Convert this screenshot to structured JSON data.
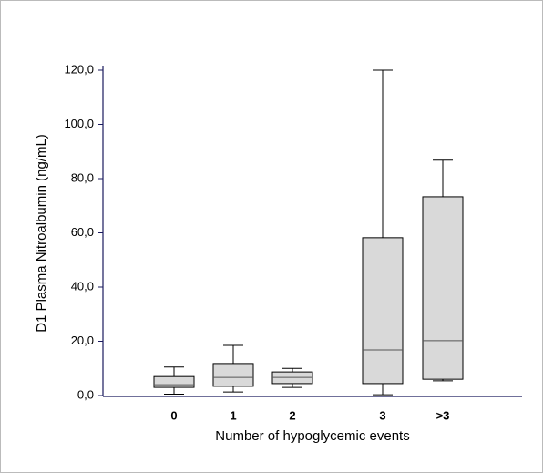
{
  "chart_data": {
    "type": "box",
    "y_label": "D1 Plasma Nitroalbumin (ng/mL)",
    "x_label": "Number of hypoglycemic events",
    "categories": [
      "0",
      "1",
      "2",
      "3",
      ">3"
    ],
    "min": [
      0.5,
      1.3,
      3,
      0.3,
      5.4
    ],
    "q1": [
      3,
      3.4,
      4.4,
      4.4,
      6
    ],
    "median": [
      4,
      6.7,
      6.7,
      16.8,
      20.2
    ],
    "q3": [
      7,
      11.8,
      8.7,
      58.2,
      73.3
    ],
    "max": [
      10.5,
      18.5,
      10,
      120,
      86.8
    ],
    "color": "#d9d9d9",
    "ylim": [
      0,
      120
    ],
    "yticks": [
      {
        "value": 0,
        "label": "0,0"
      },
      {
        "value": 20,
        "label": "20,0"
      },
      {
        "value": 40,
        "label": "40,0"
      },
      {
        "value": 60,
        "label": "60,0"
      },
      {
        "value": 80,
        "label": "80,0"
      },
      {
        "value": 100,
        "label": "100,0"
      },
      {
        "value": 120,
        "label": "120,0"
      }
    ]
  }
}
